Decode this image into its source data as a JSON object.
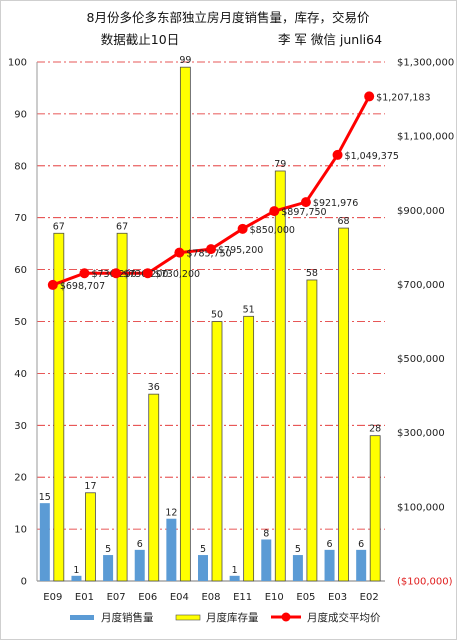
{
  "title_line1": "8月份多伦多东部独立房月度销售量，库存，交易价",
  "title_line2": "数据截止10日",
  "author_note": "李 军 微信 junli64",
  "chart_data": {
    "type": "bar",
    "categories": [
      "E09",
      "E01",
      "E07",
      "E06",
      "E04",
      "E08",
      "E11",
      "E10",
      "E05",
      "E03",
      "E02"
    ],
    "series": [
      {
        "name": "月度销售量",
        "type": "bar",
        "color": "#5b9bd5",
        "values": [
          15,
          1,
          5,
          6,
          12,
          5,
          1,
          8,
          5,
          6,
          6
        ],
        "labels": [
          "15",
          "1",
          "5",
          "6",
          "12",
          "5",
          "1",
          "8",
          "5",
          "6",
          "6"
        ]
      },
      {
        "name": "月度库存量",
        "type": "bar",
        "color": "#ffff00",
        "values": [
          67,
          17,
          67,
          36,
          99,
          50,
          51,
          79,
          58,
          68,
          28
        ],
        "labels": [
          "67",
          "17",
          "67",
          "36",
          "99",
          "50",
          "51",
          "79",
          "58",
          "68",
          "28"
        ]
      },
      {
        "name": "月度成交平均价",
        "type": "line",
        "axis": "right",
        "color": "#ff0000",
        "values": [
          698707,
          730200,
          730200,
          730200,
          785750,
          795200,
          850000,
          897750,
          921976,
          1049375,
          1207183
        ],
        "labels": [
          "$698,707",
          "$730,200",
          "$730,200",
          "$730,200",
          "$785,750",
          "$795,200",
          "$850,000",
          "$897,750",
          "$921,976",
          "$1,049,375",
          "$1,207,183"
        ]
      }
    ],
    "ylim": [
      0,
      100
    ],
    "yticks": [
      "0",
      "10",
      "20",
      "30",
      "40",
      "50",
      "60",
      "70",
      "80",
      "90",
      "100"
    ],
    "y2lim": [
      -100000,
      1300000
    ],
    "y2ticks": [
      "($100,000)",
      "$100,000",
      "$300,000",
      "$500,000",
      "$700,000",
      "$900,000",
      "$1,100,000",
      "$1,300,000"
    ],
    "grid": "dash-dot red horizontal lines",
    "legend_position": "bottom"
  }
}
